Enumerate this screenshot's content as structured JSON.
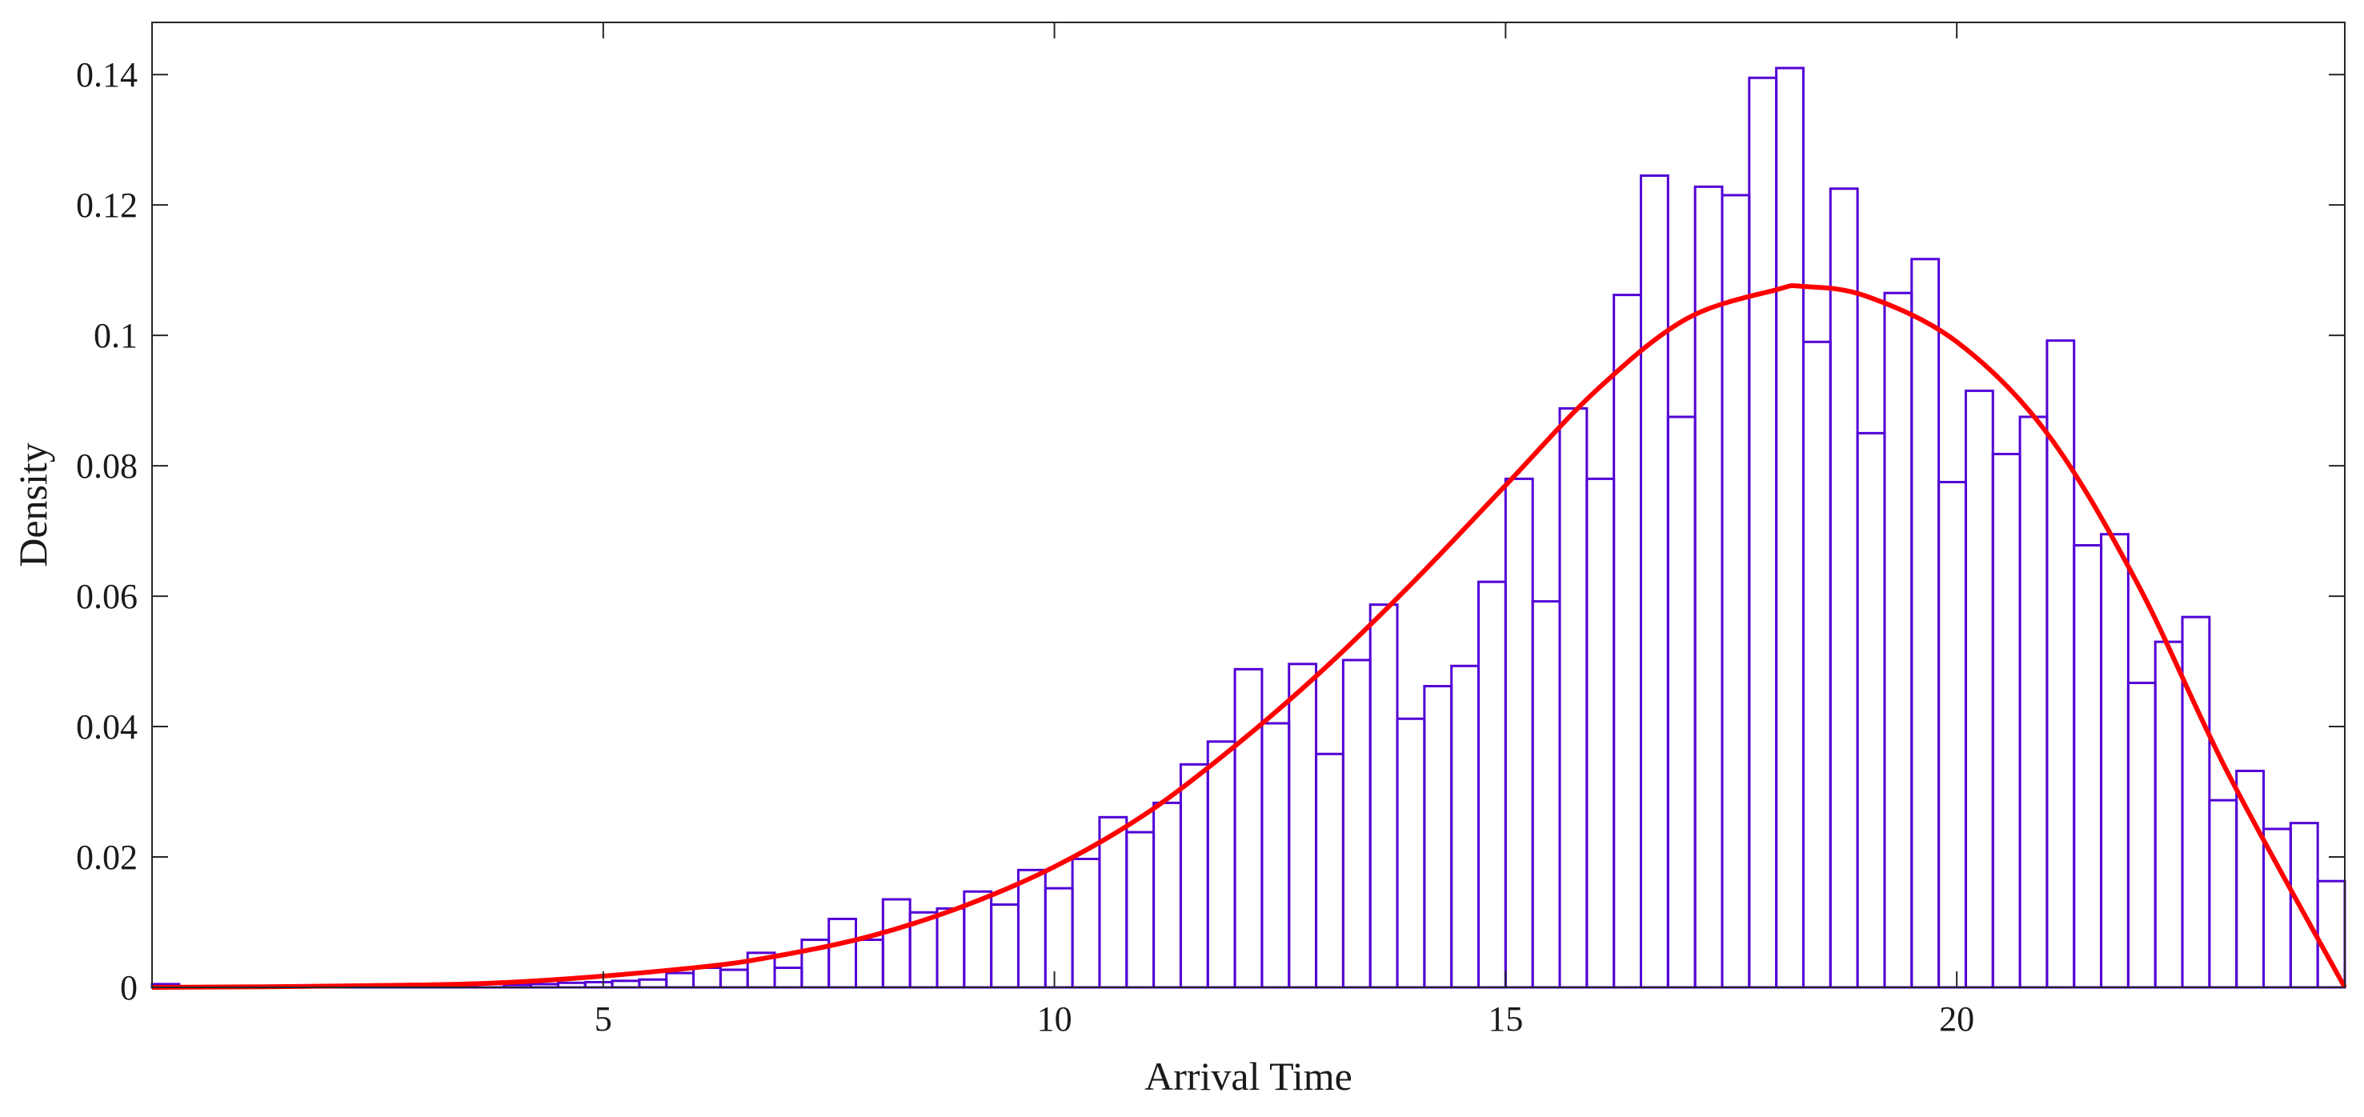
{
  "chart_data": {
    "type": "bar",
    "title": "",
    "xlabel": "Arrival Time",
    "ylabel": "Density",
    "xlim": [
      0,
      24.3
    ],
    "ylim": [
      0,
      0.148
    ],
    "xticks": [
      5,
      10,
      15,
      20
    ],
    "xtick_labels": [
      "5",
      "10",
      "15",
      "20"
    ],
    "yticks": [
      0,
      0.02,
      0.04,
      0.06,
      0.08,
      0.1,
      0.12,
      0.14
    ],
    "ytick_labels": [
      "0",
      "0.02",
      "0.04",
      "0.06",
      "0.08",
      "0.1",
      "0.12",
      "0.14"
    ],
    "grid": false,
    "box": true,
    "histogram": {
      "bin_width": 0.3,
      "bin_start": 0,
      "values": [
        0.0005,
        0.0001,
        0.0002,
        0.0001,
        0.0001,
        0.0002,
        0.0002,
        0.0002,
        0.0002,
        0.0002,
        0.0003,
        0.0004,
        0.0005,
        0.0004,
        0.0005,
        0.0007,
        0.0008,
        0.001,
        0.0012,
        0.0022,
        0.003,
        0.0027,
        0.0053,
        0.003,
        0.0073,
        0.0105,
        0.0073,
        0.0135,
        0.0115,
        0.0121,
        0.0147,
        0.0127,
        0.018,
        0.0152,
        0.0197,
        0.0261,
        0.0238,
        0.0283,
        0.0342,
        0.0377,
        0.0488,
        0.0405,
        0.0496,
        0.0358,
        0.0502,
        0.0587,
        0.0412,
        0.0462,
        0.0493,
        0.0622,
        0.078,
        0.0592,
        0.0888,
        0.078,
        0.1062,
        0.1245,
        0.0875,
        0.1228,
        0.1215,
        0.1395,
        0.141,
        0.099,
        0.1225,
        0.085,
        0.1065,
        0.1117,
        0.0775,
        0.0915,
        0.0818,
        0.0875,
        0.0992,
        0.0678,
        0.0695,
        0.0467,
        0.053,
        0.0568,
        0.0287,
        0.0332,
        0.0243,
        0.0252,
        0.0163
      ],
      "edge_color": "#5200d6"
    },
    "series": [
      {
        "type": "line",
        "color": "#ff0000",
        "x": [
          0,
          2,
          4,
          6,
          7,
          8,
          9,
          10,
          11,
          12,
          13,
          14,
          15,
          16,
          17,
          18,
          18.3,
          19,
          20,
          21,
          22,
          23,
          24.3
        ],
        "y": [
          0,
          0.0002,
          0.0008,
          0.003,
          0.005,
          0.008,
          0.0125,
          0.0185,
          0.0265,
          0.037,
          0.049,
          0.0625,
          0.077,
          0.0915,
          0.1025,
          0.107,
          0.1075,
          0.106,
          0.099,
          0.085,
          0.062,
          0.033,
          0.0
        ]
      }
    ]
  }
}
